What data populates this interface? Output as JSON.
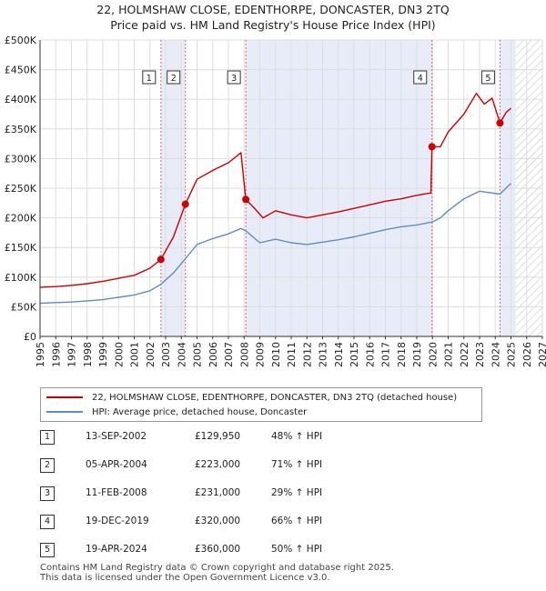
{
  "title_line1": "22, HOLMSHAW CLOSE, EDENTHORPE, DONCASTER, DN3 2TQ",
  "title_line2": "Price paid vs. HM Land Registry's House Price Index (HPI)",
  "colors": {
    "property": "#cc0000",
    "hpi": "#5b8ec7",
    "shade": "#e8ecf8",
    "vline": "#e06666"
  },
  "chart_data": {
    "type": "line",
    "title": "Price paid vs. HM Land Registry's House Price Index (HPI)",
    "xlabel": "",
    "ylabel": "",
    "xlim": [
      1995,
      2027
    ],
    "ylim": [
      0,
      500000
    ],
    "x_ticks": [
      "1995",
      "1996",
      "1997",
      "1998",
      "1999",
      "2000",
      "2001",
      "2002",
      "2003",
      "2004",
      "2005",
      "2006",
      "2007",
      "2008",
      "2009",
      "2010",
      "2011",
      "2012",
      "2013",
      "2014",
      "2015",
      "2016",
      "2017",
      "2018",
      "2019",
      "2020",
      "2021",
      "2022",
      "2023",
      "2024",
      "2025",
      "2026",
      "2027"
    ],
    "y_ticks": [
      {
        "value": 0,
        "label": "£0"
      },
      {
        "value": 50000,
        "label": "£50K"
      },
      {
        "value": 100000,
        "label": "£100K"
      },
      {
        "value": 150000,
        "label": "£150K"
      },
      {
        "value": 200000,
        "label": "£200K"
      },
      {
        "value": 250000,
        "label": "£250K"
      },
      {
        "value": 300000,
        "label": "£300K"
      },
      {
        "value": 350000,
        "label": "£350K"
      },
      {
        "value": 400000,
        "label": "£400K"
      },
      {
        "value": 450000,
        "label": "£450K"
      },
      {
        "value": 500000,
        "label": "£500K"
      }
    ],
    "shaded_spans": [
      [
        2002.7,
        2004.26
      ],
      [
        2008.11,
        2019.97
      ],
      [
        2024.3,
        2025.3
      ]
    ],
    "hatch_from": 2025.3,
    "series": [
      {
        "name": "22, HOLMSHAW CLOSE, EDENTHORPE, DONCASTER, DN3 2TQ (detached house)",
        "color": "#cc0000",
        "x": [
          1995,
          1996,
          1997,
          1998,
          1999,
          2000,
          2001,
          2002,
          2002.7,
          2003.5,
          2004.26,
          2005,
          2006,
          2007,
          2007.8,
          2008.11,
          2008.6,
          2009.2,
          2010,
          2011,
          2012,
          2013,
          2014,
          2015,
          2016,
          2017,
          2018,
          2019,
          2019.9,
          2019.97,
          2020.5,
          2021,
          2022,
          2022.8,
          2023.3,
          2023.8,
          2024.3,
          2024.7,
          2025
        ],
        "y": [
          83000,
          84000,
          86000,
          89000,
          93000,
          98000,
          103000,
          115000,
          129950,
          168000,
          223000,
          265000,
          280000,
          293000,
          310000,
          231000,
          218000,
          200000,
          212000,
          205000,
          200000,
          205000,
          210000,
          216000,
          222000,
          228000,
          232000,
          238000,
          242000,
          320000,
          320000,
          345000,
          375000,
          410000,
          392000,
          402000,
          360000,
          378000,
          385000
        ]
      },
      {
        "name": "HPI: Average price, detached house, Doncaster",
        "color": "#5b8ec7",
        "x": [
          1995,
          1996,
          1997,
          1998,
          1999,
          2000,
          2001,
          2002,
          2002.7,
          2003.5,
          2004.26,
          2005,
          2006,
          2007,
          2007.8,
          2008.11,
          2009,
          2010,
          2011,
          2012,
          2013,
          2014,
          2015,
          2016,
          2017,
          2018,
          2019,
          2019.97,
          2020.5,
          2021,
          2022,
          2023,
          2024.3,
          2024.8,
          2025
        ],
        "y": [
          56000,
          57000,
          58000,
          60000,
          62000,
          66000,
          70000,
          77000,
          88000,
          107000,
          131000,
          155000,
          165000,
          173000,
          182000,
          178000,
          158000,
          164000,
          158000,
          155000,
          159000,
          163000,
          168000,
          174000,
          180000,
          185000,
          188000,
          193000,
          200000,
          212000,
          232000,
          245000,
          240000,
          253000,
          258000
        ]
      }
    ],
    "sales": [
      {
        "id": "1",
        "x": 2002.7,
        "price": 129950
      },
      {
        "id": "2",
        "x": 2004.26,
        "price": 223000
      },
      {
        "id": "3",
        "x": 2008.11,
        "price": 231000
      },
      {
        "id": "4",
        "x": 2019.97,
        "price": 320000
      },
      {
        "id": "5",
        "x": 2024.3,
        "price": 360000
      }
    ]
  },
  "legend": {
    "property_label": "22, HOLMSHAW CLOSE, EDENTHORPE, DONCASTER, DN3 2TQ (detached house)",
    "hpi_label": "HPI: Average price, detached house, Doncaster"
  },
  "transactions": [
    {
      "num": "1",
      "date": "13-SEP-2002",
      "price": "£129,950",
      "hpi": "48% ↑ HPI"
    },
    {
      "num": "2",
      "date": "05-APR-2004",
      "price": "£223,000",
      "hpi": "71% ↑ HPI"
    },
    {
      "num": "3",
      "date": "11-FEB-2008",
      "price": "£231,000",
      "hpi": "29% ↑ HPI"
    },
    {
      "num": "4",
      "date": "19-DEC-2019",
      "price": "£320,000",
      "hpi": "66% ↑ HPI"
    },
    {
      "num": "5",
      "date": "19-APR-2024",
      "price": "£360,000",
      "hpi": "50% ↑ HPI"
    }
  ],
  "footer_line1": "Contains HM Land Registry data © Crown copyright and database right 2025.",
  "footer_line2": "This data is licensed under the Open Government Licence v3.0."
}
